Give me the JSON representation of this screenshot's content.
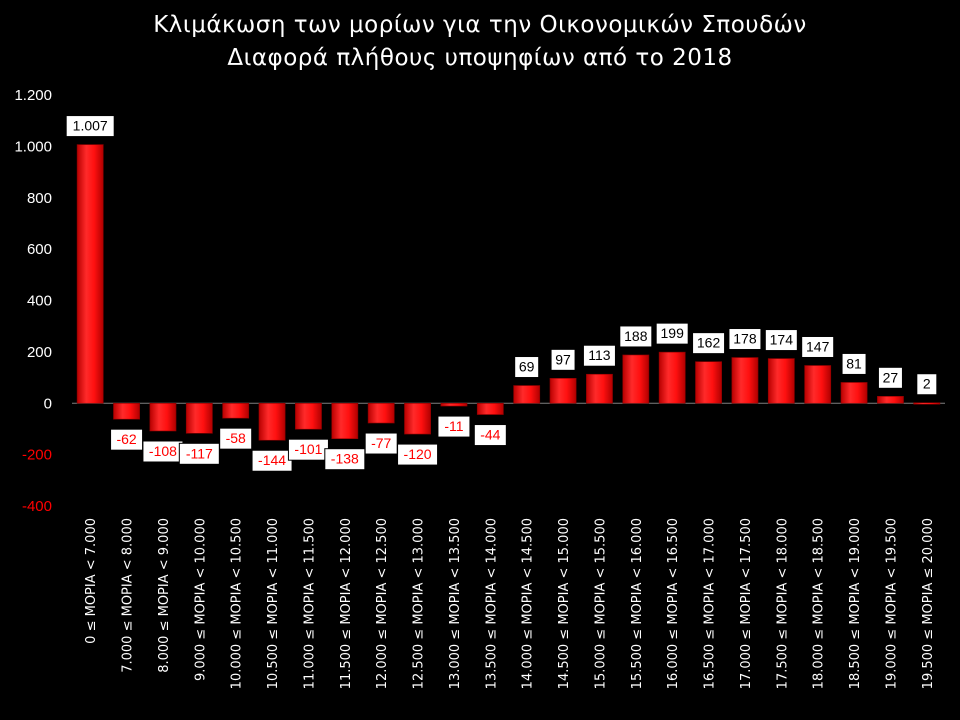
{
  "chart_data": {
    "type": "bar",
    "title": "Κλιμάκωση των μορίων για την Οικονομικών Σπουδών",
    "subtitle": "Διαφορά πλήθους υποψηφίων από το 2018",
    "xlabel": "",
    "ylabel": "",
    "ylim": [
      -400,
      1200
    ],
    "yticks": [
      1200,
      1000,
      800,
      600,
      400,
      200,
      0,
      -200,
      -400
    ],
    "ytick_labels": [
      "1.200",
      "1.000",
      "800",
      "600",
      "400",
      "200",
      "0",
      "-200",
      "-400"
    ],
    "grid": false,
    "legend": "none",
    "colors": {
      "bar": "#ff0000",
      "positive_label": "#000000",
      "negative_label": "#ff0000",
      "positive_tick": "#ffffff",
      "negative_tick": "#ff0000",
      "background": "#000000"
    },
    "categories": [
      "0 ≤ ΜΟΡΙΑ < 7.000",
      "7.000 ≤ ΜΟΡΙΑ < 8.000",
      "8.000 ≤ ΜΟΡΙΑ < 9.000",
      "9.000 ≤ ΜΟΡΙΑ < 10.000",
      "10.000 ≤ ΜΟΡΙΑ < 10.500",
      "10.500 ≤ ΜΟΡΙΑ < 11.000",
      "11.000 ≤ ΜΟΡΙΑ < 11.500",
      "11.500 ≤ ΜΟΡΙΑ < 12.000",
      "12.000 ≤ ΜΟΡΙΑ < 12.500",
      "12.500 ≤ ΜΟΡΙΑ < 13.000",
      "13.000 ≤ ΜΟΡΙΑ < 13.500",
      "13.500 ≤ ΜΟΡΙΑ < 14.000",
      "14.000 ≤ ΜΟΡΙΑ < 14.500",
      "14.500 ≤ ΜΟΡΙΑ < 15.000",
      "15.000 ≤ ΜΟΡΙΑ < 15.500",
      "15.500 ≤ ΜΟΡΙΑ < 16.000",
      "16.000 ≤ ΜΟΡΙΑ < 16.500",
      "16.500 ≤ ΜΟΡΙΑ < 17.000",
      "17.000 ≤ ΜΟΡΙΑ < 17.500",
      "17.500 ≤ ΜΟΡΙΑ < 18.000",
      "18.000 ≤ ΜΟΡΙΑ < 18.500",
      "18.500 ≤ ΜΟΡΙΑ < 19.000",
      "19.000 ≤ ΜΟΡΙΑ < 19.500",
      "19.500 ≤ ΜΟΡΙΑ ≤ 20.000"
    ],
    "values": [
      1007,
      -62,
      -108,
      -117,
      -58,
      -144,
      -101,
      -138,
      -77,
      -120,
      -11,
      -44,
      69,
      97,
      113,
      188,
      199,
      162,
      178,
      174,
      147,
      81,
      27,
      2
    ],
    "value_labels": [
      "1.007",
      "-62",
      "-108",
      "-117",
      "-58",
      "-144",
      "-101",
      "-138",
      "-77",
      "-120",
      "-11",
      "-44",
      "69",
      "97",
      "113",
      "188",
      "199",
      "162",
      "178",
      "174",
      "147",
      "81",
      "27",
      "2"
    ]
  }
}
